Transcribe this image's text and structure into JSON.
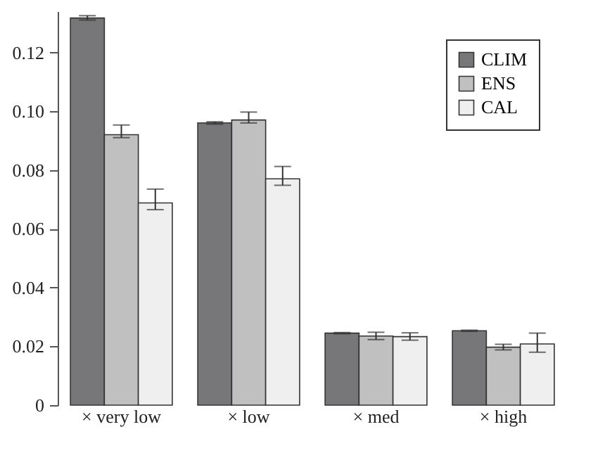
{
  "chart_data": {
    "type": "bar",
    "categories": [
      "× very low",
      "× low",
      "× med",
      "× high"
    ],
    "series": [
      {
        "name": "CLIM",
        "color": "#77777a",
        "values": [
          0.1317,
          0.096,
          0.0245,
          0.0253
        ],
        "errors": [
          [
            0.131,
            0.1325
          ],
          [
            0.0956,
            0.0964
          ],
          [
            0.0243,
            0.0247
          ],
          [
            0.0251,
            0.0255
          ]
        ]
      },
      {
        "name": "ENS",
        "color": "#c0c0c0",
        "values": [
          0.092,
          0.097,
          0.0235,
          0.0197
        ],
        "errors": [
          [
            0.091,
            0.0953
          ],
          [
            0.096,
            0.0997
          ],
          [
            0.0223,
            0.0248
          ],
          [
            0.0188,
            0.0207
          ]
        ]
      },
      {
        "name": "CAL",
        "color": "#efefef",
        "values": [
          0.0688,
          0.077,
          0.0233,
          0.0208
        ],
        "errors": [
          [
            0.0665,
            0.0735
          ],
          [
            0.0748,
            0.0812
          ],
          [
            0.0221,
            0.0246
          ],
          [
            0.018,
            0.0245
          ]
        ]
      }
    ],
    "ylim": [
      0,
      0.134
    ],
    "yticks": [
      0,
      0.02,
      0.04,
      0.06,
      0.08,
      {
        "value": 0.1,
        "label": "0.10"
      },
      {
        "value": 0.12,
        "label": "0.12"
      }
    ],
    "grid": false,
    "legend": "top right"
  }
}
